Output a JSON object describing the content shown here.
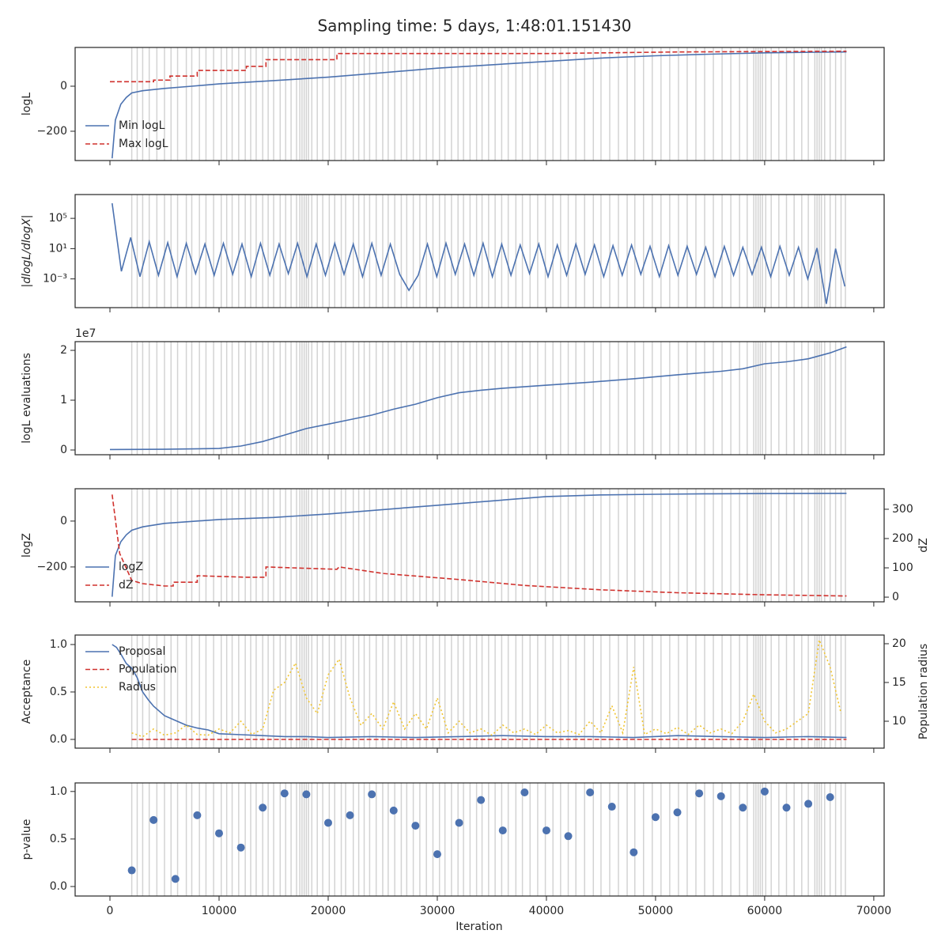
{
  "title": "Sampling time: 5 days, 1:48:01.151430",
  "xlabel": "Iteration",
  "xlim": [
    -3190,
    70950
  ],
  "xticks": [
    0,
    10000,
    20000,
    30000,
    40000,
    50000,
    60000,
    70000
  ],
  "vlines": [
    2000,
    2500,
    3000,
    3600,
    4300,
    5000,
    5600,
    6200,
    7000,
    7500,
    8200,
    8800,
    9500,
    10200,
    10700,
    11200,
    11800,
    12400,
    12900,
    13400,
    14000,
    14500,
    15000,
    15600,
    16100,
    16600,
    17100,
    17400,
    17600,
    17800,
    18000,
    18200,
    18500,
    19000,
    19500,
    20100,
    20600,
    21200,
    21600,
    22300,
    22800,
    23300,
    23800,
    24400,
    25000,
    25500,
    26100,
    26700,
    27200,
    27800,
    28400,
    29000,
    29600,
    30200,
    30700,
    31300,
    31900,
    32400,
    33000,
    33600,
    34100,
    34700,
    35300,
    35900,
    36500,
    37200,
    37800,
    38500,
    39200,
    39900,
    40600,
    41300,
    42000,
    42700,
    43500,
    44300,
    45000,
    45800,
    46600,
    47400,
    48100,
    48900,
    49700,
    50500,
    51300,
    52100,
    52900,
    53700,
    54500,
    55300,
    56100,
    56900,
    57700,
    58400,
    59000,
    59200,
    59400,
    59600,
    59800,
    60100,
    60600,
    61300,
    62000,
    62700,
    63400,
    64000,
    64600,
    64800,
    65000,
    65200,
    65500,
    66000,
    66500,
    67000,
    67400
  ],
  "chart_data": [
    {
      "type": "line",
      "ylabel": "logL",
      "ylim": [
        -330,
        172
      ],
      "yticks": [
        {
          "value": -200,
          "label": "−200"
        },
        0
      ],
      "legend": "lower left",
      "series": [
        {
          "name": "Min logL",
          "color": "#4c72b0",
          "linestyle": "solid",
          "x": [
            200,
            500,
            1000,
            1500,
            2000,
            3000,
            5000,
            7500,
            10000,
            15000,
            20000,
            25000,
            30000,
            35000,
            40000,
            45000,
            50000,
            55000,
            60000,
            65000,
            67500
          ],
          "values": [
            -320,
            -150,
            -80,
            -50,
            -30,
            -20,
            -10,
            0,
            10,
            25,
            40,
            60,
            80,
            95,
            110,
            125,
            135,
            142,
            148,
            151,
            152
          ]
        },
        {
          "name": "Max logL",
          "color": "#d0312d",
          "linestyle": "dashed",
          "x": [
            0,
            4000,
            4000,
            5500,
            5500,
            8000,
            8000,
            12500,
            12500,
            14300,
            14300,
            20800,
            20800,
            40000,
            52000,
            67500
          ],
          "values": [
            20,
            20,
            27,
            27,
            45,
            45,
            70,
            70,
            88,
            88,
            118,
            118,
            145,
            145,
            152,
            155
          ]
        }
      ]
    },
    {
      "type": "line",
      "ylabel": "|dlogL/dlogX|",
      "log_y": true,
      "ylim": [
        1.6e-07,
        140000000.0
      ],
      "yticks": [
        {
          "value": 0.001,
          "label": "10⁻³"
        },
        {
          "value": 10,
          "label": "10¹"
        },
        {
          "value": 100000,
          "label": "10⁵"
        }
      ],
      "series": [
        {
          "color": "#4c72b0",
          "linestyle": "solid",
          "x": [
            200,
            1050,
            1900,
            2750,
            3600,
            4450,
            5300,
            6150,
            7000,
            7850,
            8700,
            9550,
            10400,
            11250,
            12100,
            12950,
            13800,
            14650,
            15500,
            16350,
            17200,
            18050,
            18900,
            19750,
            20600,
            21450,
            22300,
            23150,
            24000,
            24850,
            25700,
            26550,
            27400,
            28250,
            29100,
            29950,
            30800,
            31650,
            32500,
            33350,
            34200,
            35050,
            35900,
            36750,
            37600,
            38450,
            39300,
            40150,
            41000,
            41850,
            42700,
            43550,
            44400,
            45250,
            46100,
            46950,
            47800,
            48650,
            49500,
            50350,
            51200,
            52050,
            52900,
            53750,
            54600,
            55450,
            56300,
            57150,
            58000,
            58850,
            59700,
            60550,
            61400,
            62250,
            63100,
            63950,
            64800,
            65650,
            66500,
            67350
          ],
          "values": [
            10000000,
            0.01,
            300,
            0.002,
            80,
            0.003,
            60,
            0.002,
            50,
            0.005,
            40,
            0.003,
            50,
            0.004,
            40,
            0.002,
            50,
            0.003,
            40,
            0.005,
            50,
            0.002,
            40,
            0.003,
            50,
            0.004,
            40,
            0.002,
            50,
            0.003,
            40,
            0.004,
            3e-05,
            0.003,
            40,
            0.002,
            50,
            0.004,
            40,
            0.003,
            50,
            0.002,
            40,
            0.003,
            30,
            0.005,
            40,
            0.002,
            30,
            0.003,
            40,
            0.004,
            30,
            0.002,
            25,
            0.003,
            30,
            0.004,
            20,
            0.002,
            25,
            0.003,
            20,
            0.004,
            15,
            0.002,
            20,
            0.003,
            15,
            0.004,
            15,
            0.002,
            20,
            0.003,
            15,
            0.001,
            12,
            5e-07,
            10,
            0.0001
          ]
        }
      ]
    },
    {
      "type": "line",
      "ylabel": "logL evaluations",
      "offset_label": "1e7",
      "ylim": [
        -950000,
        21750000
      ],
      "yticks": [
        {
          "value": 0,
          "label": "0"
        },
        {
          "value": 10000000,
          "label": "1"
        },
        {
          "value": 20000000,
          "label": "2"
        }
      ],
      "series": [
        {
          "color": "#4c72b0",
          "linestyle": "solid",
          "x": [
            0,
            5000,
            10000,
            12000,
            14000,
            16000,
            18000,
            20000,
            22000,
            24000,
            26000,
            28000,
            30000,
            32000,
            34000,
            36000,
            40000,
            44000,
            48000,
            52000,
            56000,
            58000,
            60000,
            62000,
            64000,
            66000,
            67500
          ],
          "values": [
            100000,
            150000,
            300000,
            800000,
            1700000,
            3000000,
            4300000,
            5200000,
            6100000,
            7000000,
            8200000,
            9200000,
            10500000,
            11500000,
            12000000,
            12400000,
            13000000,
            13600000,
            14300000,
            15100000,
            15800000,
            16300000,
            17300000,
            17700000,
            18300000,
            19500000,
            20700000
          ]
        }
      ]
    },
    {
      "type": "line",
      "ylabel": "logZ",
      "y2label": "dZ",
      "ylim": [
        -352,
        141
      ],
      "yticks": [
        {
          "value": -200,
          "label": "−200"
        },
        0
      ],
      "y2lim": [
        -16,
        370
      ],
      "y2ticks": [
        0,
        100,
        200,
        300
      ],
      "legend": "lower left",
      "series": [
        {
          "name": "logZ",
          "color": "#4c72b0",
          "linestyle": "solid",
          "x": [
            200,
            500,
            1000,
            1500,
            2000,
            3000,
            5000,
            10000,
            15000,
            20000,
            25000,
            30000,
            35000,
            40000,
            45000,
            50000,
            55000,
            60000,
            67500
          ],
          "values": [
            -330,
            -150,
            -90,
            -60,
            -40,
            -25,
            -10,
            7,
            16,
            31,
            50,
            69,
            88,
            107,
            114,
            117,
            119,
            120,
            121
          ]
        },
        {
          "name": "dZ",
          "color": "#d0312d",
          "linestyle": "dashed",
          "axis": "y2",
          "x": [
            200,
            900,
            2000,
            3000,
            5000,
            5800,
            5800,
            8000,
            8000,
            12500,
            14300,
            14300,
            20800,
            21000,
            25000,
            32000,
            38000,
            45000,
            52000,
            60000,
            67500
          ],
          "values": [
            350,
            149,
            57,
            46,
            38,
            38,
            51,
            51,
            73,
            68,
            68,
            103,
            95,
            103,
            81,
            60,
            40,
            25,
            15,
            8,
            4
          ]
        }
      ]
    },
    {
      "type": "line",
      "ylabel": "Acceptance",
      "y2label": "Population radius",
      "ylim": [
        -0.092,
        1.1
      ],
      "yticks": [
        {
          "value": 0,
          "label": "0.0"
        },
        {
          "value": 0.5,
          "label": "0.5"
        },
        {
          "value": 1,
          "label": "1.0"
        }
      ],
      "y2lim": [
        6.53,
        21.12
      ],
      "y2ticks": [
        10,
        15,
        20
      ],
      "legend": "upper left",
      "series": [
        {
          "name": "Proposal",
          "color": "#4c72b0",
          "linestyle": "solid",
          "x": [
            200,
            600,
            1000,
            1500,
            2000,
            2500,
            3000,
            3500,
            4000,
            5000,
            6000,
            7000,
            8000,
            9000,
            10000,
            12000,
            14000,
            16000,
            18000,
            20000,
            24000,
            28000,
            32000,
            36000,
            40000,
            44000,
            48000,
            52000,
            56000,
            60000,
            64000,
            67500
          ],
          "values": [
            1.0,
            0.97,
            0.9,
            0.8,
            0.75,
            0.65,
            0.5,
            0.42,
            0.35,
            0.25,
            0.2,
            0.15,
            0.12,
            0.1,
            0.06,
            0.05,
            0.04,
            0.03,
            0.03,
            0.02,
            0.03,
            0.02,
            0.03,
            0.04,
            0.03,
            0.03,
            0.02,
            0.04,
            0.03,
            0.02,
            0.03,
            0.02
          ]
        },
        {
          "name": "Population",
          "color": "#d0312d",
          "linestyle": "dashed",
          "x": [
            2000,
            67500
          ],
          "values": [
            0,
            0
          ]
        },
        {
          "name": "Radius",
          "color": "#f0c430",
          "linestyle": "dotted",
          "axis": "y2",
          "x": [
            2000,
            3000,
            4000,
            5000,
            6000,
            7000,
            8000,
            9000,
            10000,
            11000,
            12000,
            13000,
            14000,
            15000,
            16000,
            17000,
            18000,
            19000,
            20000,
            21000,
            22000,
            23000,
            24000,
            25000,
            26000,
            27000,
            28000,
            29000,
            30000,
            31000,
            32000,
            33000,
            34000,
            35000,
            36000,
            37000,
            38000,
            39000,
            40000,
            41000,
            42000,
            43000,
            44000,
            45000,
            46000,
            47000,
            48000,
            49000,
            50000,
            51000,
            52000,
            53000,
            54000,
            55000,
            56000,
            57000,
            58000,
            59000,
            60000,
            61000,
            62000,
            63000,
            64000,
            65000,
            66000,
            67000
          ],
          "values": [
            8.5,
            8,
            9,
            8.2,
            8.5,
            9.5,
            8.3,
            8.2,
            9,
            8.5,
            10,
            8.3,
            9,
            14,
            15,
            17.5,
            13,
            11,
            16,
            18,
            13,
            9.5,
            11,
            9,
            12.5,
            9,
            11,
            9,
            13,
            8.5,
            10,
            8.5,
            9,
            8.2,
            9.5,
            8.5,
            9,
            8.3,
            9.5,
            8.5,
            8.8,
            8.3,
            10,
            8.5,
            12,
            8.5,
            17,
            8.3,
            9,
            8.4,
            9.2,
            8.3,
            9.5,
            8.5,
            9,
            8.4,
            10,
            13.5,
            10,
            8.5,
            9,
            10,
            11,
            20.5,
            17,
            11
          ]
        }
      ]
    },
    {
      "type": "scatter",
      "ylabel": "p-value",
      "ylim": [
        -0.1,
        1.09
      ],
      "yticks": [
        {
          "value": 0,
          "label": "0.0"
        },
        {
          "value": 0.5,
          "label": "0.5"
        },
        {
          "value": 1,
          "label": "1.0"
        }
      ],
      "series": [
        {
          "color": "#4c72b0",
          "x": [
            2000,
            4000,
            6000,
            8000,
            10000,
            12000,
            14000,
            16000,
            18000,
            20000,
            22000,
            24000,
            26000,
            28000,
            30000,
            32000,
            34000,
            36000,
            38000,
            40000,
            42000,
            44000,
            46000,
            48000,
            50000,
            52000,
            54000,
            56000,
            58000,
            60000,
            62000,
            64000,
            66000
          ],
          "values": [
            0.17,
            0.7,
            0.08,
            0.75,
            0.56,
            0.41,
            0.83,
            0.98,
            0.97,
            0.67,
            0.75,
            0.97,
            0.8,
            0.64,
            0.34,
            0.67,
            0.91,
            0.59,
            0.99,
            0.59,
            0.53,
            0.99,
            0.84,
            0.36,
            0.73,
            0.78,
            0.98,
            0.95,
            0.83,
            1.0,
            0.83,
            0.87,
            0.94
          ]
        }
      ]
    }
  ]
}
